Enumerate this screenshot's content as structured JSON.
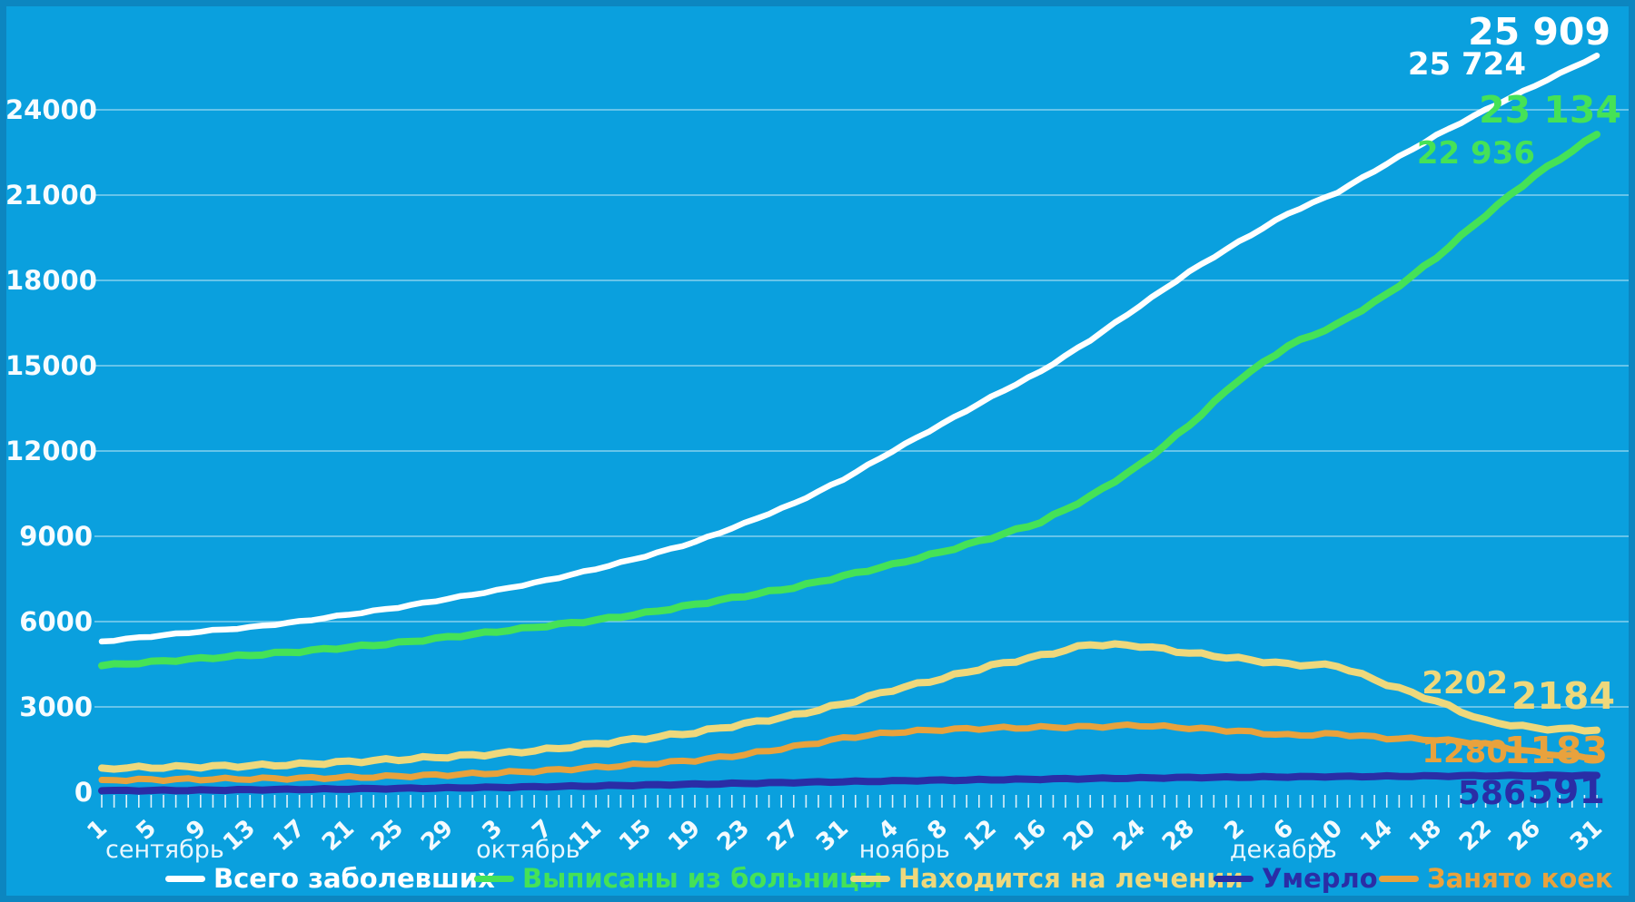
{
  "chart_data": {
    "type": "line",
    "title": "",
    "background_color": "#0aa0de",
    "border_color": "#0c86c0",
    "grid_color": "rgba(255,255,255,0.5)",
    "tick_color": "rgba(255,255,255,0.85)",
    "grid": true,
    "legend_position": "bottom",
    "ylim": [
      0,
      26000
    ],
    "y_ticks": [
      0,
      3000,
      6000,
      9000,
      12000,
      15000,
      18000,
      21000,
      24000
    ],
    "x_axis": {
      "total_days": 122,
      "tick_labels": [
        "1",
        "5",
        "9",
        "13",
        "17",
        "21",
        "25",
        "29",
        "3",
        "7",
        "11",
        "15",
        "19",
        "23",
        "27",
        "31",
        "4",
        "8",
        "12",
        "16",
        "20",
        "24",
        "28",
        "2",
        "6",
        "10",
        "14",
        "18",
        "22",
        "26",
        "31"
      ],
      "tick_days": [
        0,
        4,
        8,
        12,
        16,
        20,
        24,
        28,
        32,
        36,
        40,
        44,
        48,
        52,
        56,
        60,
        64,
        68,
        72,
        76,
        80,
        84,
        88,
        92,
        96,
        100,
        104,
        108,
        112,
        116,
        121
      ],
      "months": [
        {
          "label": "сентябрь",
          "day": 0
        },
        {
          "label": "октябрь",
          "day": 30
        },
        {
          "label": "ноябрь",
          "day": 61
        },
        {
          "label": "декабрь",
          "day": 91
        }
      ]
    },
    "sampling_note": "series values are sampled at x_axis.tick_days (day 0 = 1 сентября, day 121 = 31 декабря); values estimated from plot",
    "series": [
      {
        "name": "Всего заболевших",
        "color": "#ffffff",
        "label_prev": "25 724",
        "label_last": "25 909",
        "values": [
          5300,
          5480,
          5650,
          5800,
          6000,
          6250,
          6500,
          6800,
          7100,
          7450,
          7850,
          8300,
          8800,
          9450,
          10150,
          11000,
          12000,
          12950,
          13900,
          14800,
          15900,
          17100,
          18300,
          19350,
          20350,
          21100,
          22100,
          23100,
          24000,
          24850,
          25909
        ]
      },
      {
        "name": "Выписаны из больницы",
        "color": "#45e257",
        "label_prev": "22 936",
        "label_last": "23 134",
        "values": [
          4450,
          4580,
          4700,
          4820,
          4950,
          5100,
          5250,
          5450,
          5650,
          5850,
          6050,
          6300,
          6600,
          6900,
          7200,
          7600,
          8000,
          8450,
          8950,
          9500,
          10400,
          11500,
          12900,
          14500,
          15700,
          16450,
          17500,
          18800,
          20300,
          21700,
          23134
        ]
      },
      {
        "name": "Находится на лечении",
        "color": "#eed87c",
        "label_prev": "2202",
        "label_last": "2184",
        "values": [
          850,
          870,
          900,
          930,
          980,
          1070,
          1150,
          1250,
          1350,
          1500,
          1700,
          1900,
          2100,
          2400,
          2700,
          3100,
          3600,
          4000,
          4450,
          4800,
          5200,
          5150,
          4900,
          4700,
          4500,
          4450,
          3800,
          3200,
          2500,
          2250,
          2184
        ]
      },
      {
        "name": "Умерло",
        "color": "#2a2da6",
        "label_prev": "586",
        "label_last": "591",
        "values": [
          50,
          60,
          70,
          85,
          100,
          115,
          130,
          150,
          170,
          195,
          220,
          250,
          280,
          310,
          340,
          370,
          395,
          420,
          440,
          460,
          480,
          500,
          515,
          530,
          540,
          550,
          560,
          570,
          578,
          584,
          591
        ]
      },
      {
        "name": "Занято коек",
        "color": "#e8a23d",
        "label_prev": "1280",
        "label_last": "1183",
        "values": [
          430,
          440,
          455,
          470,
          490,
          520,
          560,
          610,
          680,
          760,
          870,
          990,
          1120,
          1320,
          1600,
          1900,
          2100,
          2200,
          2250,
          2280,
          2300,
          2350,
          2260,
          2150,
          2000,
          2050,
          1900,
          1850,
          1700,
          1400,
          1183
        ]
      }
    ]
  }
}
